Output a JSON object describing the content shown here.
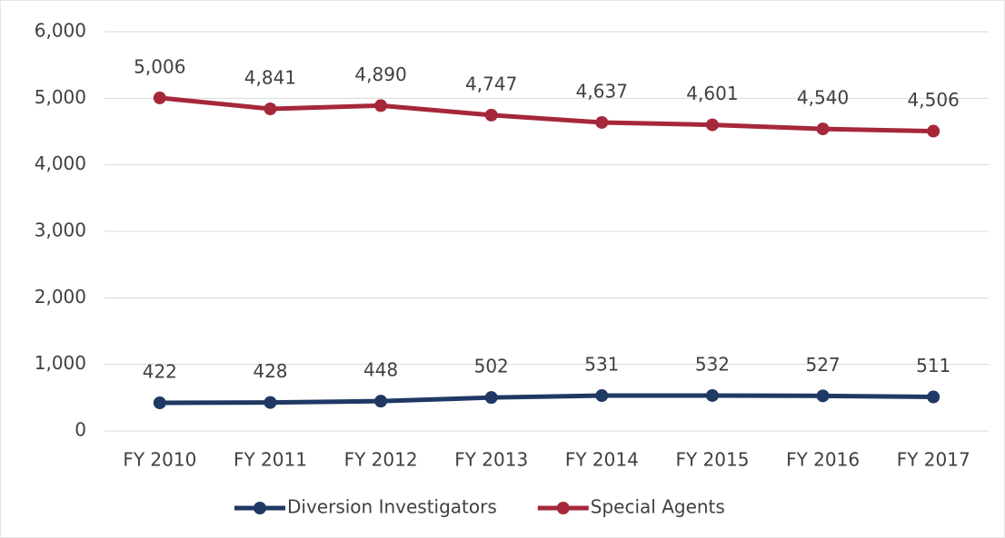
{
  "chart_data": {
    "type": "line",
    "categories": [
      "FY 2010",
      "FY 2011",
      "FY 2012",
      "FY 2013",
      "FY 2014",
      "FY 2015",
      "FY 2016",
      "FY 2017"
    ],
    "series": [
      {
        "name": "Diversion Investigators",
        "color": "#203864",
        "values": [
          422,
          428,
          448,
          502,
          531,
          532,
          527,
          511
        ]
      },
      {
        "name": "Special Agents",
        "color": "#a5283a",
        "values": [
          5006,
          4841,
          4890,
          4747,
          4637,
          4601,
          4540,
          4506
        ],
        "value_labels": [
          "5,006",
          "4,841",
          "4,890",
          "4,747",
          "4,637",
          "4,601",
          "4,540",
          "4,506"
        ]
      }
    ],
    "ylim": [
      0,
      6000
    ],
    "yticks": [
      0,
      {
        "value": 1000,
        "label": "1,000"
      },
      {
        "value": 2000,
        "label": "2,000"
      },
      {
        "value": 3000,
        "label": "3,000"
      },
      {
        "value": 4000,
        "label": "4,000"
      },
      {
        "value": 5000,
        "label": "5,000"
      },
      {
        "value": 6000,
        "label": "6,000"
      }
    ],
    "grid": true,
    "legend": "bottom"
  }
}
